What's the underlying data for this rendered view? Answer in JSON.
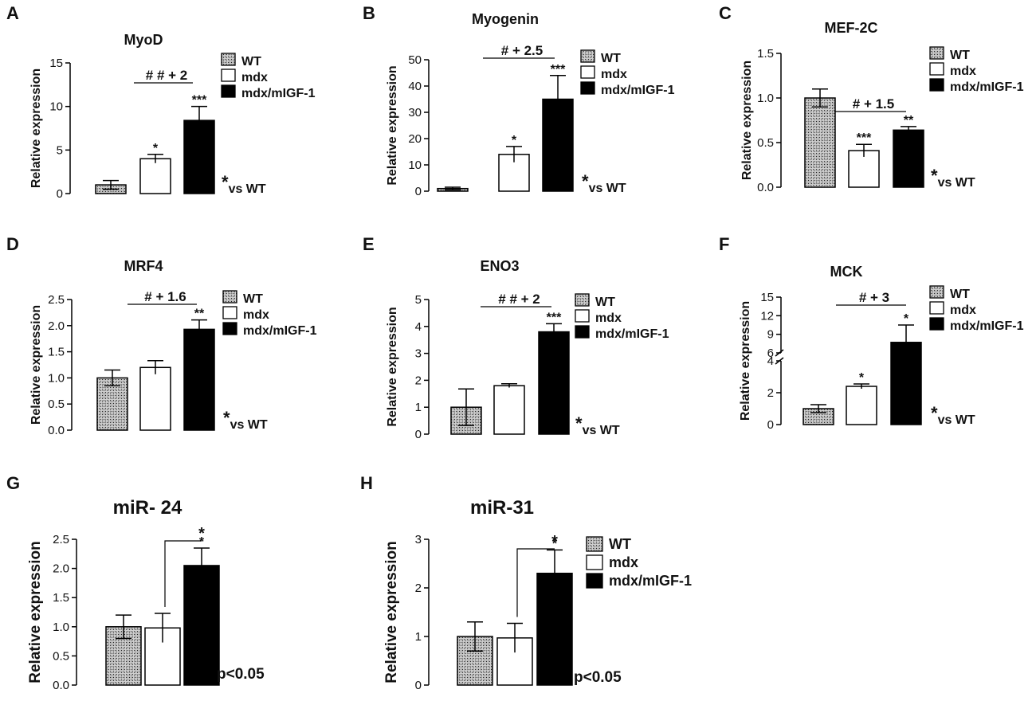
{
  "figure": {
    "legend_entries": [
      {
        "name": "WT",
        "fill": "pattern"
      },
      {
        "name": "mdx",
        "fill": "#ffffff"
      },
      {
        "name": "mdx/mIGF-1",
        "fill": "#000000"
      }
    ],
    "ylabel": "Relative expression"
  },
  "chart_data": [
    {
      "type": "bar",
      "panel": "A",
      "title": "MyoD",
      "xlabel": "",
      "ylabel": "Relative expression",
      "categories": [
        "WT",
        "mdx",
        "mdx/mIGF-1"
      ],
      "values": [
        1.0,
        4.0,
        8.4
      ],
      "errors": [
        0.5,
        0.5,
        1.6
      ],
      "significance": [
        "",
        "*",
        "***"
      ],
      "ylim": [
        0,
        15
      ],
      "yticks": [
        "0",
        "5",
        "10",
        "15"
      ],
      "comparison": "# # + 2",
      "note": "*vs WT",
      "legend": true
    },
    {
      "type": "bar",
      "panel": "B",
      "title": "Myogenin",
      "xlabel": "",
      "ylabel": "Relative expression",
      "categories": [
        "WT",
        "mdx",
        "mdx/mIGF-1"
      ],
      "values": [
        1.0,
        14.0,
        35.0
      ],
      "errors": [
        0.5,
        3.0,
        9.0
      ],
      "significance": [
        "",
        "*",
        "***"
      ],
      "ylim": [
        0,
        50
      ],
      "yticks": [
        "0",
        "10",
        "20",
        "30",
        "40",
        "50"
      ],
      "comparison": "#  + 2.5",
      "note": "*vs WT",
      "legend": true
    },
    {
      "type": "bar",
      "panel": "C",
      "title": "MEF-2C",
      "xlabel": "",
      "ylabel": "Relative expression",
      "categories": [
        "WT",
        "mdx",
        "mdx/mIGF-1"
      ],
      "values": [
        1.0,
        0.41,
        0.64
      ],
      "errors": [
        0.1,
        0.07,
        0.04
      ],
      "significance": [
        "",
        "***",
        "**"
      ],
      "ylim": [
        0,
        1.5
      ],
      "yticks": [
        "0.0",
        "0.5",
        "1.0",
        "1.5"
      ],
      "comparison": "# + 1.5",
      "note": "*vs WT",
      "legend": true
    },
    {
      "type": "bar",
      "panel": "D",
      "title": "MRF4",
      "xlabel": "",
      "ylabel": "Relative expression",
      "categories": [
        "WT",
        "mdx",
        "mdx/mIGF-1"
      ],
      "values": [
        1.0,
        1.2,
        1.93
      ],
      "errors": [
        0.15,
        0.13,
        0.18
      ],
      "significance": [
        "",
        "",
        "**"
      ],
      "ylim": [
        0,
        2.5
      ],
      "yticks": [
        "0.0",
        "0.5",
        "1.0",
        "1.5",
        "2.0",
        "2.5"
      ],
      "comparison": "#   + 1.6",
      "note": "*vs WT",
      "legend": true
    },
    {
      "type": "bar",
      "panel": "E",
      "title": "ENO3",
      "xlabel": "",
      "ylabel": "Relative expression",
      "categories": [
        "WT",
        "mdx",
        "mdx/mIGF-1"
      ],
      "values": [
        1.0,
        1.8,
        3.8
      ],
      "errors": [
        0.68,
        0.07,
        0.3
      ],
      "significance": [
        "",
        "",
        "***"
      ],
      "ylim": [
        0,
        5
      ],
      "yticks": [
        "0",
        "1",
        "2",
        "3",
        "4",
        "5"
      ],
      "comparison": "# # + 2",
      "note": "*vs WT",
      "legend": true
    },
    {
      "type": "bar",
      "panel": "F",
      "title": "MCK",
      "xlabel": "",
      "ylabel": "Relative expression",
      "categories": [
        "WT",
        "mdx",
        "mdx/mIGF-1"
      ],
      "values": [
        1.0,
        2.4,
        7.7
      ],
      "errors": [
        0.25,
        0.15,
        2.8
      ],
      "significance": [
        "",
        "*",
        "*"
      ],
      "ylim": [
        0,
        15
      ],
      "ybreak": [
        4,
        6
      ],
      "yticks": [
        "0",
        "2",
        "4",
        "6",
        "9",
        "12",
        "15"
      ],
      "comparison": "# + 3",
      "note": "*vs WT",
      "legend": true
    },
    {
      "type": "bar",
      "panel": "G",
      "title": "miR- 24",
      "xlabel": "",
      "ylabel": "Relative expression",
      "categories": [
        "WT",
        "mdx",
        "mdx/mIGF-1"
      ],
      "values": [
        1.0,
        0.98,
        2.05
      ],
      "errors": [
        0.2,
        0.25,
        0.3
      ],
      "significance": [
        "",
        "",
        "*"
      ],
      "ylim": [
        0,
        2.5
      ],
      "yticks": [
        "0.0",
        "0.5",
        "1.0",
        "1.5",
        "2.0",
        "2.5"
      ],
      "comparison": "*",
      "note": "p<0.05",
      "legend": false
    },
    {
      "type": "bar",
      "panel": "H",
      "title": "miR-31",
      "xlabel": "",
      "ylabel": "Relative expression",
      "categories": [
        "WT",
        "mdx",
        "mdx/mIGF-1"
      ],
      "values": [
        1.0,
        0.97,
        2.3
      ],
      "errors": [
        0.3,
        0.3,
        0.48
      ],
      "significance": [
        "",
        "",
        "*"
      ],
      "ylim": [
        0,
        3
      ],
      "yticks": [
        "0",
        "1",
        "2",
        "3"
      ],
      "comparison": "*",
      "note": "p<0.05",
      "legend": true
    }
  ]
}
